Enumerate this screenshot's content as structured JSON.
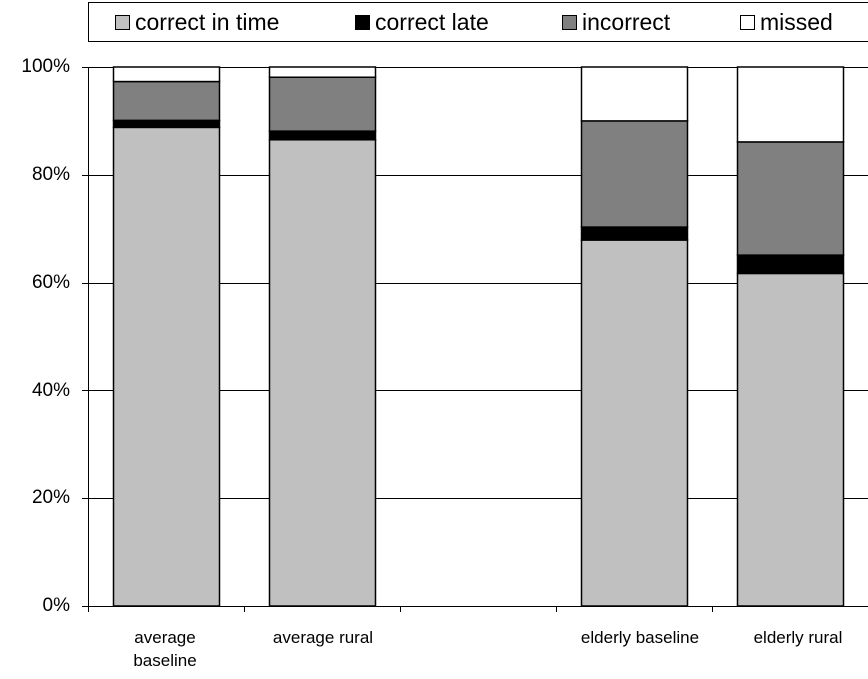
{
  "chart_data": {
    "type": "bar",
    "stacked": true,
    "categories": [
      "average baseline",
      "average rural",
      "",
      "elderly baseline",
      "elderly rural"
    ],
    "series": [
      {
        "name": "correct in time",
        "color": "#c0c0c0",
        "values": [
          88.8,
          86.5,
          null,
          67.9,
          61.7
        ]
      },
      {
        "name": "correct late",
        "color": "#000000",
        "values": [
          1.3,
          1.6,
          null,
          2.4,
          3.4
        ]
      },
      {
        "name": "incorrect",
        "color": "#808080",
        "values": [
          7.2,
          10.0,
          null,
          19.7,
          21.0
        ]
      },
      {
        "name": "missed",
        "color": "#ffffff",
        "values": [
          2.7,
          1.9,
          null,
          10.0,
          13.9
        ]
      }
    ],
    "ylim": [
      0,
      100
    ],
    "yticks": [
      "0%",
      "20%",
      "40%",
      "60%",
      "80%",
      "100%"
    ],
    "grid": true,
    "legend": "top"
  },
  "x_labels": [
    {
      "line1": "average",
      "line2": "baseline"
    },
    {
      "line1": "average rural",
      "line2": ""
    },
    {
      "line1": "",
      "line2": ""
    },
    {
      "line1": "elderly baseline",
      "line2": ""
    },
    {
      "line1": "elderly rural",
      "line2": ""
    }
  ]
}
